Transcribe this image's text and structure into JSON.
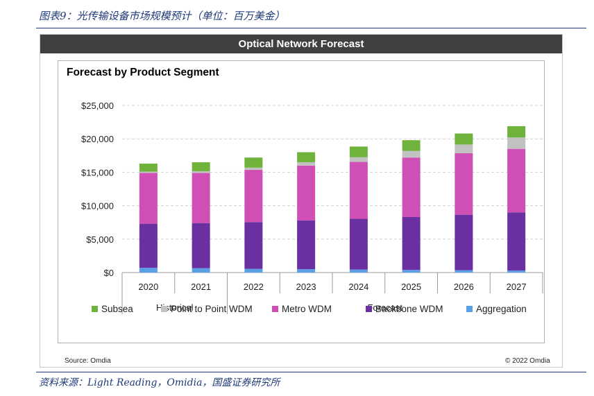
{
  "caption": "图表9：光传输设备市场规模预计（单位：百万美金）",
  "source_footer": "资料来源：Light Reading，Omidia，国盛证券研究所",
  "banner_title": "Optical Network Forecast",
  "source_left": "Source: Omdia",
  "source_right": "© 2022 Omdia",
  "colors": {
    "Subsea": "#6fb23c",
    "Point to Point WDM": "#c2c2c2",
    "Metro WDM": "#cf4fb4",
    "Backbone WDM": "#6a2fa0",
    "Aggregation": "#5aa0e6"
  },
  "chart_data": {
    "type": "bar",
    "stacked": true,
    "title": "Forecast by Product Segment",
    "categories": [
      "2020",
      "2021",
      "2022",
      "2023",
      "2024",
      "2025",
      "2026",
      "2027"
    ],
    "groups": [
      {
        "label": "Historical",
        "categories": [
          "2020",
          "2021"
        ]
      },
      {
        "label": "Forecast",
        "categories": [
          "2022",
          "2023",
          "2024",
          "2025",
          "2026",
          "2027"
        ]
      }
    ],
    "ylim": [
      0,
      25000
    ],
    "yticks": [
      0,
      5000,
      10000,
      15000,
      20000,
      25000
    ],
    "ytick_labels": [
      "$0",
      "$5,000",
      "$10,000",
      "$15,000",
      "$20,000",
      "$25,000"
    ],
    "series": [
      {
        "name": "Aggregation",
        "values": [
          700,
          650,
          550,
          500,
          450,
          400,
          350,
          300
        ]
      },
      {
        "name": "Backbone WDM",
        "values": [
          6600,
          6750,
          7000,
          7300,
          7600,
          7900,
          8300,
          8700
        ]
      },
      {
        "name": "Metro WDM",
        "values": [
          7600,
          7500,
          7800,
          8200,
          8500,
          8900,
          9200,
          9500
        ]
      },
      {
        "name": "Point to Point WDM",
        "values": [
          200,
          250,
          350,
          500,
          700,
          1000,
          1300,
          1700
        ]
      },
      {
        "name": "Subsea",
        "values": [
          1200,
          1350,
          1500,
          1500,
          1600,
          1600,
          1650,
          1700
        ]
      }
    ],
    "legend": [
      "Subsea",
      "Point to Point WDM",
      "Metro WDM",
      "Backbone WDM",
      "Aggregation"
    ],
    "legend_position": "bottom"
  }
}
